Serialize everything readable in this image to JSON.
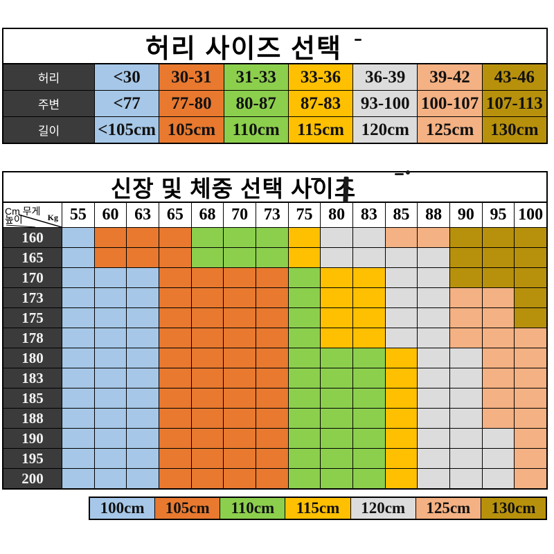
{
  "palette": {
    "blue": "#a6c7e7",
    "orange": "#e8792f",
    "green": "#8ccf4d",
    "yellow": "#fec000",
    "gray": "#dcdcdc",
    "peach": "#f4b183",
    "gold": "#b8910c",
    "header_dark": "#3b3b3b",
    "border": "#000000"
  },
  "waist_table": {
    "title": "허리 사이즈 선택",
    "rows": [
      {
        "label": "허리",
        "cells": [
          {
            "text": "<30",
            "color": "blue"
          },
          {
            "text": "30-31",
            "color": "orange"
          },
          {
            "text": "31-33",
            "color": "green"
          },
          {
            "text": "33-36",
            "color": "yellow"
          },
          {
            "text": "36-39",
            "color": "gray"
          },
          {
            "text": "39-42",
            "color": "peach"
          },
          {
            "text": "43-46",
            "color": "gold"
          }
        ]
      },
      {
        "label": "주변",
        "cells": [
          {
            "text": "<77",
            "color": "blue"
          },
          {
            "text": "77-80",
            "color": "orange"
          },
          {
            "text": "80-87",
            "color": "green"
          },
          {
            "text": "87-83",
            "color": "yellow"
          },
          {
            "text": "93-100",
            "color": "gray"
          },
          {
            "text": "100-107",
            "color": "peach"
          },
          {
            "text": "107-113",
            "color": "gold"
          }
        ]
      },
      {
        "label": "길이",
        "cells": [
          {
            "text": "<105cm",
            "color": "blue"
          },
          {
            "text": "105cm",
            "color": "orange"
          },
          {
            "text": "110cm",
            "color": "green"
          },
          {
            "text": "115cm",
            "color": "yellow"
          },
          {
            "text": "120cm",
            "color": "gray"
          },
          {
            "text": "125cm",
            "color": "peach"
          },
          {
            "text": "130cm",
            "color": "gold"
          }
        ]
      }
    ]
  },
  "size_matrix": {
    "title": "신장 및 체중 선택 사이즈",
    "corner": {
      "weight_label": "Cm 무게",
      "unit_label": "Kg",
      "height_label": "높이"
    },
    "weight_columns": [
      "55",
      "60",
      "63",
      "65",
      "68",
      "70",
      "73",
      "75",
      "80",
      "83",
      "85",
      "88",
      "90",
      "95",
      "100"
    ],
    "rows": [
      {
        "height": "160",
        "cells": [
          "blue",
          "orange",
          "orange",
          "orange",
          "green",
          "green",
          "green",
          "yellow",
          "gray",
          "gray",
          "peach",
          "peach",
          "gold",
          "gold",
          "gold"
        ]
      },
      {
        "height": "165",
        "cells": [
          "blue",
          "orange",
          "orange",
          "orange",
          "green",
          "green",
          "green",
          "yellow",
          "gray",
          "gray",
          "gray",
          "gray",
          "gold",
          "gold",
          "gold"
        ]
      },
      {
        "height": "170",
        "cells": [
          "blue",
          "blue",
          "blue",
          "orange",
          "orange",
          "orange",
          "orange",
          "green",
          "yellow",
          "yellow",
          "gray",
          "gray",
          "gold",
          "gold",
          "gold"
        ]
      },
      {
        "height": "173",
        "cells": [
          "blue",
          "blue",
          "blue",
          "orange",
          "orange",
          "orange",
          "orange",
          "green",
          "yellow",
          "yellow",
          "gray",
          "gray",
          "peach",
          "peach",
          "gold"
        ]
      },
      {
        "height": "175",
        "cells": [
          "blue",
          "blue",
          "blue",
          "orange",
          "orange",
          "orange",
          "orange",
          "green",
          "yellow",
          "yellow",
          "gray",
          "gray",
          "peach",
          "peach",
          "gold"
        ]
      },
      {
        "height": "178",
        "cells": [
          "blue",
          "blue",
          "blue",
          "orange",
          "orange",
          "orange",
          "orange",
          "green",
          "yellow",
          "yellow",
          "gray",
          "gray",
          "peach",
          "peach",
          "peach"
        ]
      },
      {
        "height": "180",
        "cells": [
          "blue",
          "blue",
          "blue",
          "orange",
          "orange",
          "orange",
          "orange",
          "green",
          "green",
          "green",
          "yellow",
          "gray",
          "gray",
          "peach",
          "peach"
        ]
      },
      {
        "height": "183",
        "cells": [
          "blue",
          "blue",
          "blue",
          "orange",
          "orange",
          "orange",
          "orange",
          "green",
          "green",
          "green",
          "yellow",
          "gray",
          "gray",
          "peach",
          "peach"
        ]
      },
      {
        "height": "185",
        "cells": [
          "blue",
          "blue",
          "blue",
          "orange",
          "orange",
          "orange",
          "orange",
          "green",
          "green",
          "green",
          "yellow",
          "gray",
          "gray",
          "peach",
          "peach"
        ]
      },
      {
        "height": "188",
        "cells": [
          "blue",
          "blue",
          "blue",
          "orange",
          "orange",
          "orange",
          "orange",
          "green",
          "green",
          "green",
          "yellow",
          "gray",
          "gray",
          "peach",
          "peach"
        ]
      },
      {
        "height": "190",
        "cells": [
          "blue",
          "blue",
          "blue",
          "orange",
          "orange",
          "orange",
          "orange",
          "green",
          "green",
          "green",
          "yellow",
          "gray",
          "gray",
          "gray",
          "peach"
        ]
      },
      {
        "height": "195",
        "cells": [
          "blue",
          "blue",
          "blue",
          "orange",
          "orange",
          "orange",
          "orange",
          "green",
          "green",
          "green",
          "yellow",
          "gray",
          "gray",
          "gray",
          "peach"
        ]
      },
      {
        "height": "200",
        "cells": [
          "blue",
          "blue",
          "blue",
          "orange",
          "orange",
          "orange",
          "orange",
          "green",
          "green",
          "green",
          "yellow",
          "gray",
          "gray",
          "gray",
          "peach"
        ]
      }
    ]
  },
  "legend": {
    "items": [
      {
        "label": "100cm",
        "color": "blue"
      },
      {
        "label": "105cm",
        "color": "orange"
      },
      {
        "label": "110cm",
        "color": "green"
      },
      {
        "label": "115cm",
        "color": "yellow"
      },
      {
        "label": "120cm",
        "color": "gray"
      },
      {
        "label": "125cm",
        "color": "peach"
      },
      {
        "label": "130cm",
        "color": "gold"
      }
    ]
  },
  "chart_data": [
    {
      "type": "table",
      "title": "허리 사이즈 선택",
      "row_labels": [
        "허리",
        "주변",
        "길이"
      ],
      "rows": [
        [
          "<30",
          "30-31",
          "31-33",
          "33-36",
          "36-39",
          "39-42",
          "43-46"
        ],
        [
          "<77",
          "77-80",
          "80-87",
          "87-83",
          "93-100",
          "100-107",
          "107-113"
        ],
        [
          "<105cm",
          "105cm",
          "110cm",
          "115cm",
          "120cm",
          "125cm",
          "130cm"
        ]
      ]
    },
    {
      "type": "heatmap",
      "title": "신장 및 체중 선택 사이즈",
      "x_label": "무게 (Kg)",
      "y_label": "높이 (Cm)",
      "x": [
        55,
        60,
        63,
        65,
        68,
        70,
        73,
        75,
        80,
        83,
        85,
        88,
        90,
        95,
        100
      ],
      "y": [
        160,
        165,
        170,
        173,
        175,
        178,
        180,
        183,
        185,
        188,
        190,
        195,
        200
      ],
      "values": [
        [
          "100cm",
          "105cm",
          "105cm",
          "105cm",
          "110cm",
          "110cm",
          "110cm",
          "115cm",
          "120cm",
          "120cm",
          "125cm",
          "125cm",
          "130cm",
          "130cm",
          "130cm"
        ],
        [
          "100cm",
          "105cm",
          "105cm",
          "105cm",
          "110cm",
          "110cm",
          "110cm",
          "115cm",
          "120cm",
          "120cm",
          "120cm",
          "120cm",
          "130cm",
          "130cm",
          "130cm"
        ],
        [
          "100cm",
          "100cm",
          "100cm",
          "105cm",
          "105cm",
          "105cm",
          "105cm",
          "110cm",
          "115cm",
          "115cm",
          "120cm",
          "120cm",
          "130cm",
          "130cm",
          "130cm"
        ],
        [
          "100cm",
          "100cm",
          "100cm",
          "105cm",
          "105cm",
          "105cm",
          "105cm",
          "110cm",
          "115cm",
          "115cm",
          "120cm",
          "120cm",
          "125cm",
          "125cm",
          "130cm"
        ],
        [
          "100cm",
          "100cm",
          "100cm",
          "105cm",
          "105cm",
          "105cm",
          "105cm",
          "110cm",
          "115cm",
          "115cm",
          "120cm",
          "120cm",
          "125cm",
          "125cm",
          "130cm"
        ],
        [
          "100cm",
          "100cm",
          "100cm",
          "105cm",
          "105cm",
          "105cm",
          "105cm",
          "110cm",
          "115cm",
          "115cm",
          "120cm",
          "120cm",
          "125cm",
          "125cm",
          "125cm"
        ],
        [
          "100cm",
          "100cm",
          "100cm",
          "105cm",
          "105cm",
          "105cm",
          "105cm",
          "110cm",
          "110cm",
          "110cm",
          "115cm",
          "120cm",
          "120cm",
          "125cm",
          "125cm"
        ],
        [
          "100cm",
          "100cm",
          "100cm",
          "105cm",
          "105cm",
          "105cm",
          "105cm",
          "110cm",
          "110cm",
          "110cm",
          "115cm",
          "120cm",
          "120cm",
          "125cm",
          "125cm"
        ],
        [
          "100cm",
          "100cm",
          "100cm",
          "105cm",
          "105cm",
          "105cm",
          "105cm",
          "110cm",
          "110cm",
          "110cm",
          "115cm",
          "120cm",
          "120cm",
          "125cm",
          "125cm"
        ],
        [
          "100cm",
          "100cm",
          "100cm",
          "105cm",
          "105cm",
          "105cm",
          "105cm",
          "110cm",
          "110cm",
          "110cm",
          "115cm",
          "120cm",
          "120cm",
          "125cm",
          "125cm"
        ],
        [
          "100cm",
          "100cm",
          "100cm",
          "105cm",
          "105cm",
          "105cm",
          "105cm",
          "110cm",
          "110cm",
          "110cm",
          "115cm",
          "120cm",
          "120cm",
          "120cm",
          "125cm"
        ],
        [
          "100cm",
          "100cm",
          "100cm",
          "105cm",
          "105cm",
          "105cm",
          "105cm",
          "110cm",
          "110cm",
          "110cm",
          "115cm",
          "120cm",
          "120cm",
          "120cm",
          "125cm"
        ],
        [
          "100cm",
          "100cm",
          "100cm",
          "105cm",
          "105cm",
          "105cm",
          "105cm",
          "110cm",
          "110cm",
          "110cm",
          "115cm",
          "120cm",
          "120cm",
          "120cm",
          "125cm"
        ]
      ],
      "legend_position": "bottom",
      "legend": [
        {
          "label": "100cm",
          "color": "#a6c7e7"
        },
        {
          "label": "105cm",
          "color": "#e8792f"
        },
        {
          "label": "110cm",
          "color": "#8ccf4d"
        },
        {
          "label": "115cm",
          "color": "#fec000"
        },
        {
          "label": "120cm",
          "color": "#dcdcdc"
        },
        {
          "label": "125cm",
          "color": "#f4b183"
        },
        {
          "label": "130cm",
          "color": "#b8910c"
        }
      ]
    }
  ]
}
